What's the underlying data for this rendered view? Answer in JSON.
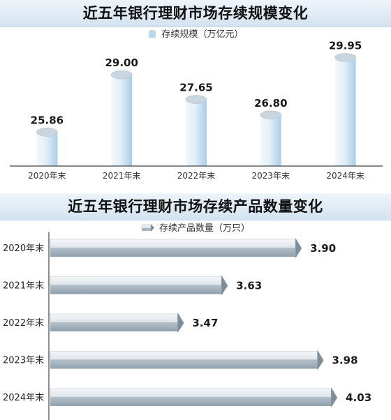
{
  "colors": {
    "title_band": "#d4e3f0",
    "cylinder_light": "#eef5fa",
    "cylinder_dark": "#a9cde8",
    "cylinder_top": "#c9d6e0",
    "bar_face": "#e9edf0",
    "bar_bottom": "#a6b5c0",
    "arrow": "#7d8e9a",
    "axis": "#444444"
  },
  "chart_data": [
    {
      "type": "bar",
      "orientation": "vertical",
      "style": "3d-cylinder",
      "title": "近五年银行理财市场存续规模变化",
      "legend": "存续规模（万亿元）",
      "legend_position": "top-center",
      "categories": [
        "2020年末",
        "2021年末",
        "2022年末",
        "2023年末",
        "2024年末"
      ],
      "values": [
        25.86,
        29.0,
        27.65,
        26.8,
        29.95
      ],
      "value_labels": [
        "25.86",
        "29.00",
        "27.65",
        "26.80",
        "29.95"
      ],
      "ylim": [
        24,
        30.5
      ],
      "grid": false
    },
    {
      "type": "bar",
      "orientation": "horizontal",
      "style": "3d-arrow",
      "title": "近五年银行理财市场存续产品数量变化",
      "legend": "存续产品数量（万只）",
      "legend_position": "top-center",
      "categories": [
        "2020年末",
        "2021年末",
        "2022年末",
        "2023年末",
        "2024年末"
      ],
      "values": [
        3.9,
        3.63,
        3.47,
        3.98,
        4.03
      ],
      "value_labels": [
        "3.90",
        "3.63",
        "3.47",
        "3.98",
        "4.03"
      ],
      "xlim": [
        3.0,
        4.05
      ],
      "grid": false
    }
  ]
}
